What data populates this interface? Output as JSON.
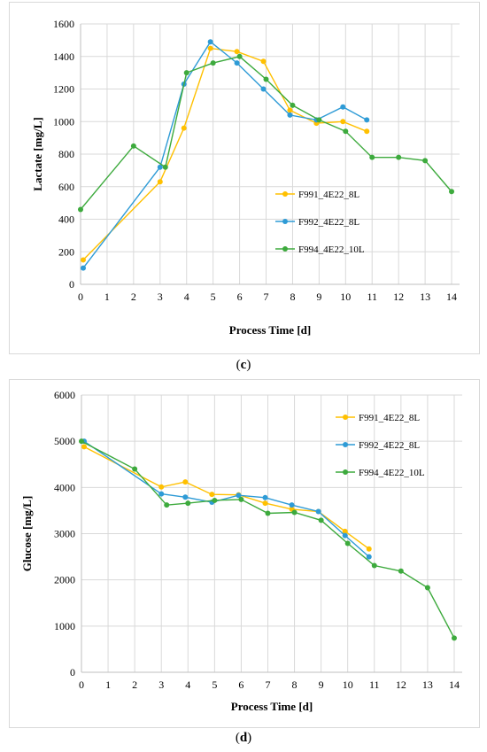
{
  "chart_data": [
    {
      "type": "line",
      "panel": "c",
      "caption": "c",
      "xlabel": "Process Time [d]",
      "ylabel": "Lactate [mg/L]",
      "xlim": [
        0,
        14.3
      ],
      "ylim": [
        0,
        1600
      ],
      "xticks": [
        "0",
        "1",
        "2",
        "3",
        "4",
        "5",
        "6",
        "7",
        "8",
        "9",
        "10",
        "11",
        "12",
        "13",
        "14"
      ],
      "yticks": [
        "0",
        "200",
        "400",
        "600",
        "800",
        "1000",
        "1200",
        "1400",
        "1600"
      ],
      "grid": true,
      "legend_position": "right-middle",
      "series": [
        {
          "name": "F991_4E22_8L",
          "color": "#FFC000",
          "x": [
            0.1,
            3.0,
            3.9,
            4.9,
            5.9,
            6.9,
            7.9,
            8.9,
            9.9,
            10.8
          ],
          "y": [
            150,
            630,
            960,
            1450,
            1430,
            1370,
            1070,
            990,
            1000,
            940
          ]
        },
        {
          "name": "F992_4E22_8L",
          "color": "#2E9BD6",
          "x": [
            0.1,
            3.0,
            3.9,
            4.9,
            5.9,
            6.9,
            7.9,
            8.9,
            9.9,
            10.8
          ],
          "y": [
            100,
            720,
            1230,
            1490,
            1360,
            1200,
            1040,
            1010,
            1090,
            1010
          ]
        },
        {
          "name": "F994_4E22_10L",
          "color": "#3DAA3D",
          "x": [
            0.0,
            2.0,
            3.2,
            4.0,
            5.0,
            6.0,
            7.0,
            8.0,
            9.0,
            10.0,
            11.0,
            12.0,
            13.0,
            14.0
          ],
          "y": [
            460,
            850,
            720,
            1300,
            1360,
            1400,
            1260,
            1100,
            1010,
            940,
            780,
            780,
            760,
            570
          ]
        }
      ]
    },
    {
      "type": "line",
      "panel": "d",
      "caption": "d",
      "xlabel": "Process Time [d]",
      "ylabel": "Glucose [mg/L]",
      "xlim": [
        0,
        14.3
      ],
      "ylim": [
        0,
        6000
      ],
      "xticks": [
        "0",
        "1",
        "2",
        "3",
        "4",
        "5",
        "6",
        "7",
        "8",
        "9",
        "10",
        "11",
        "12",
        "13",
        "14"
      ],
      "yticks": [
        "0",
        "1000",
        "2000",
        "3000",
        "4000",
        "5000",
        "6000"
      ],
      "grid": true,
      "legend_position": "top-right",
      "series": [
        {
          "name": "F991_4E22_8L",
          "color": "#FFC000",
          "x": [
            0.1,
            3.0,
            3.9,
            4.9,
            5.9,
            6.9,
            7.9,
            8.9,
            9.9,
            10.8
          ],
          "y": [
            4880,
            4010,
            4120,
            3850,
            3840,
            3660,
            3530,
            3480,
            3050,
            2670
          ]
        },
        {
          "name": "F992_4E22_8L",
          "color": "#2E9BD6",
          "x": [
            0.1,
            3.0,
            3.9,
            4.9,
            5.9,
            6.9,
            7.9,
            8.9,
            9.9,
            10.8
          ],
          "y": [
            5000,
            3860,
            3790,
            3680,
            3830,
            3780,
            3620,
            3480,
            2960,
            2500
          ]
        },
        {
          "name": "F994_4E22_10L",
          "color": "#3DAA3D",
          "x": [
            0.0,
            2.0,
            3.2,
            4.0,
            5.0,
            6.0,
            7.0,
            8.0,
            9.0,
            10.0,
            11.0,
            12.0,
            13.0,
            14.0
          ],
          "y": [
            5000,
            4400,
            3620,
            3660,
            3720,
            3740,
            3440,
            3460,
            3290,
            2790,
            2310,
            2190,
            1830,
            740
          ]
        }
      ]
    }
  ]
}
